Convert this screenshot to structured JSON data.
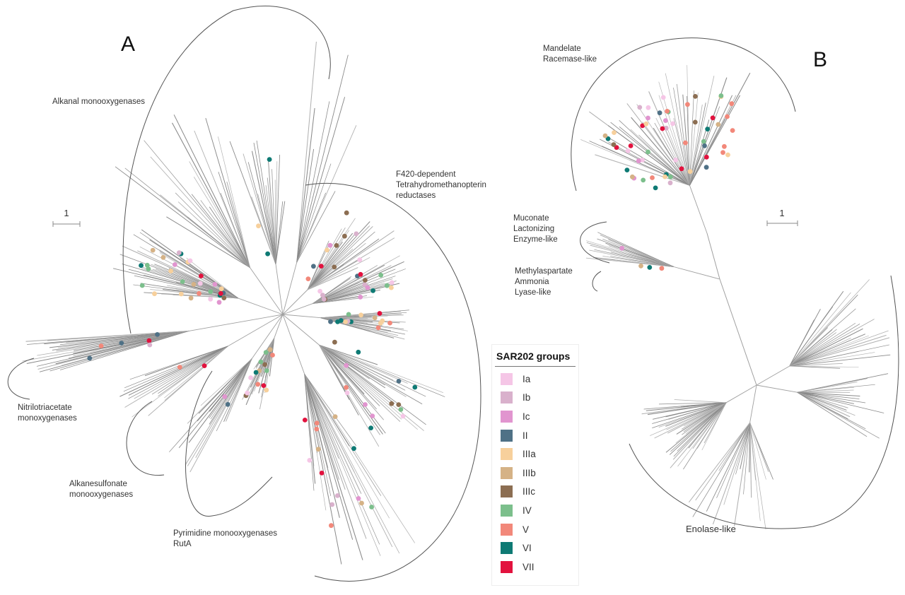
{
  "panels": [
    {
      "letter": "A",
      "scale_label": "1",
      "clades": [
        "Alkanal monooxygenases",
        "F420-dependent\nTetrahydromethanopterin\nreductases",
        "Nitrilotriacetate\nmonoxygenases",
        "Alkanesulfonate\nmonooxygenases",
        "Pyrimidine monooxygenases\nRutA"
      ]
    },
    {
      "letter": "B",
      "scale_label": "1",
      "clades": [
        "Mandelate\nRacemase-like",
        "Muconate\nLactonizing\nEnzyme-like",
        "Methylaspartate\nAmmonia\nLyase-like",
        "Enolase-like"
      ]
    }
  ],
  "legend": {
    "title": "SAR202 groups",
    "items": [
      {
        "label": "Ia",
        "color": "#f5c6e6"
      },
      {
        "label": "Ib",
        "color": "#d9b1cc"
      },
      {
        "label": "Ic",
        "color": "#e195cf"
      },
      {
        "label": "II",
        "color": "#4f7186"
      },
      {
        "label": "IIIa",
        "color": "#f7d09c"
      },
      {
        "label": "IIIb",
        "color": "#d5b286"
      },
      {
        "label": "IIIc",
        "color": "#8c6e52"
      },
      {
        "label": "IV",
        "color": "#7cbf8c"
      },
      {
        "label": "V",
        "color": "#f2887a"
      },
      {
        "label": "VI",
        "color": "#0e7a74"
      },
      {
        "label": "VII",
        "color": "#e2123e"
      }
    ]
  }
}
